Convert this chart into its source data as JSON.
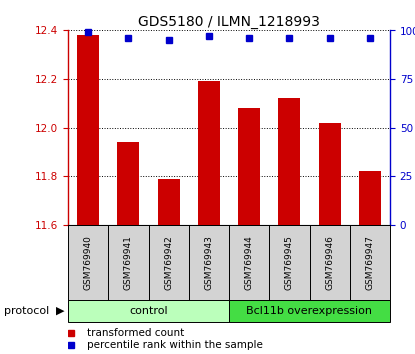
{
  "title": "GDS5180 / ILMN_1218993",
  "samples": [
    "GSM769940",
    "GSM769941",
    "GSM769942",
    "GSM769943",
    "GSM769944",
    "GSM769945",
    "GSM769946",
    "GSM769947"
  ],
  "transformed_counts": [
    12.38,
    11.94,
    11.79,
    12.19,
    12.08,
    12.12,
    12.02,
    11.82
  ],
  "percentile_ranks": [
    99,
    96,
    95,
    97,
    96,
    96,
    96,
    96
  ],
  "ylim": [
    11.6,
    12.4
  ],
  "yticks": [
    11.6,
    11.8,
    12.0,
    12.2,
    12.4
  ],
  "right_yticks": [
    0,
    25,
    50,
    75,
    100
  ],
  "right_ylim": [
    0,
    100
  ],
  "bar_color": "#cc0000",
  "dot_color": "#0000cc",
  "control_color": "#bbffbb",
  "overexpression_color": "#44dd44",
  "sample_bg_color": "#d3d3d3",
  "control_samples": 4,
  "overexpression_samples": 4,
  "control_label": "control",
  "overexpression_label": "Bcl11b overexpression",
  "protocol_label": "protocol",
  "legend_red": "transformed count",
  "legend_blue": "percentile rank within the sample",
  "title_fontsize": 10,
  "tick_fontsize": 7.5,
  "label_fontsize": 8
}
